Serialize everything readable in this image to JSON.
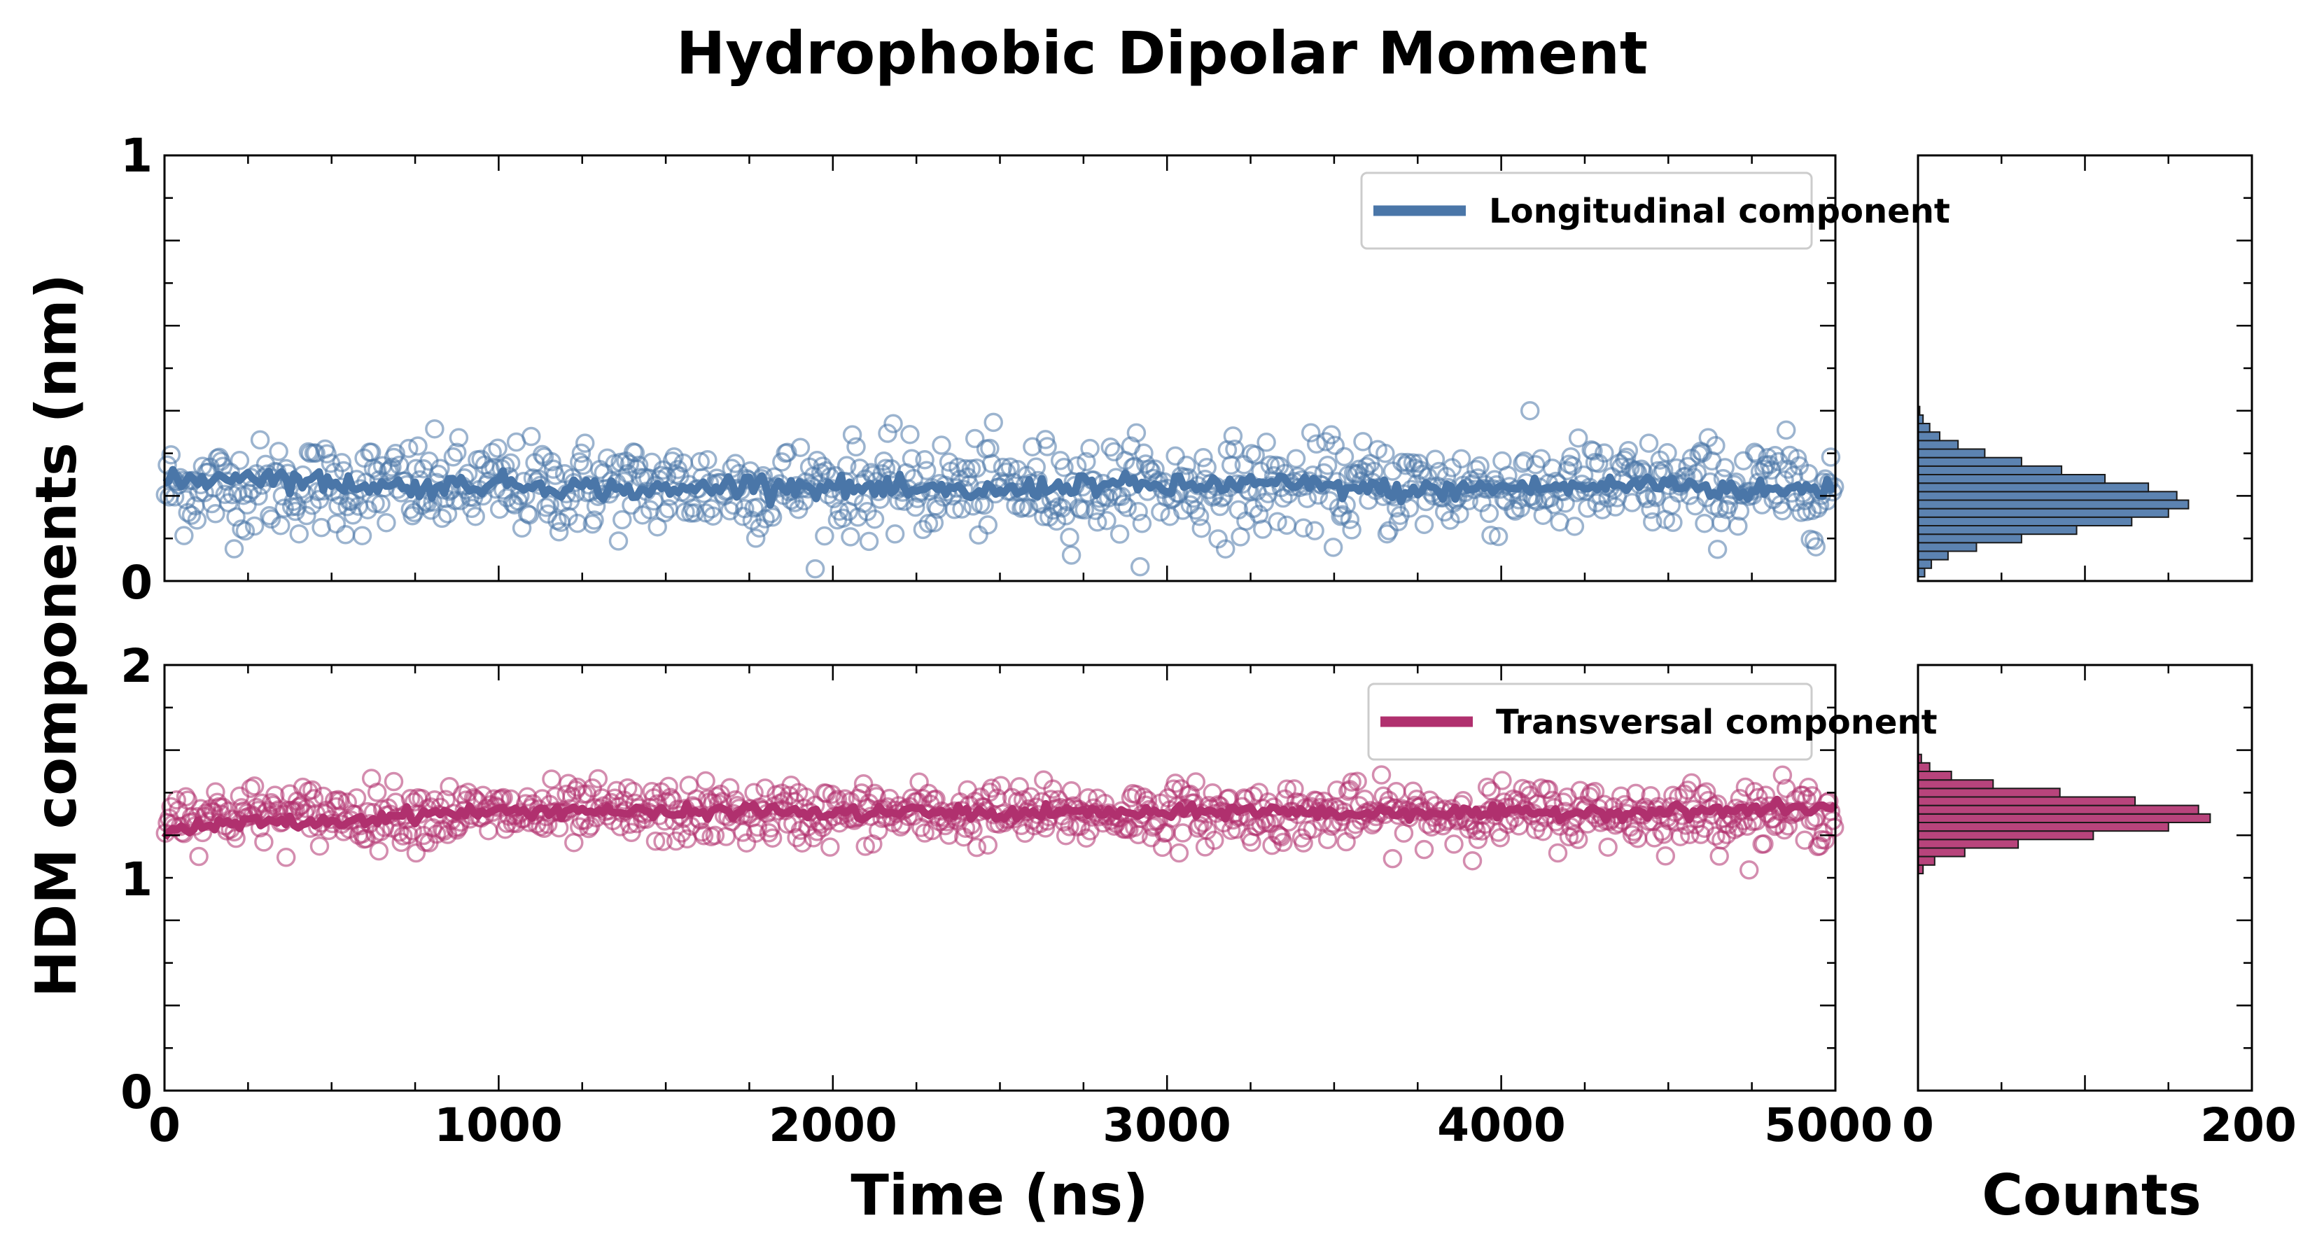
{
  "chart_data": {
    "type": "scatter",
    "title": "Hydrophobic Dipolar Moment",
    "ylabel": "HDM components (nm)",
    "xlabel": "Time (ns)",
    "hist_xlabel": "Counts",
    "xlim": [
      0,
      5000
    ],
    "x_tick_labels": [
      "0",
      "1000",
      "2000",
      "3000",
      "4000",
      "5000"
    ],
    "hist_xlim": [
      0,
      200
    ],
    "hist_tick_labels": [
      "0",
      "200"
    ],
    "panels": [
      {
        "name": "longitudinal",
        "legend": "Longitudinal component",
        "color": "#4a76a8",
        "ylim": [
          0,
          1
        ],
        "y_tick_labels": [
          "0",
          "1"
        ],
        "mean_series": {
          "x": [
            0,
            250,
            500,
            750,
            1000,
            1250,
            1500,
            1750,
            2000,
            2250,
            2500,
            2750,
            3000,
            3250,
            3500,
            3750,
            4000,
            4250,
            4500,
            4750,
            5000
          ],
          "y": [
            0.23,
            0.25,
            0.23,
            0.22,
            0.23,
            0.22,
            0.21,
            0.23,
            0.22,
            0.21,
            0.21,
            0.23,
            0.22,
            0.23,
            0.22,
            0.21,
            0.22,
            0.22,
            0.23,
            0.21,
            0.22
          ]
        },
        "scatter_mean": 0.22,
        "scatter_spread": 0.055,
        "scatter_count": 900,
        "hist": {
          "bin_centers": [
            0.02,
            0.04,
            0.06,
            0.08,
            0.1,
            0.12,
            0.14,
            0.16,
            0.18,
            0.2,
            0.22,
            0.24,
            0.26,
            0.28,
            0.3,
            0.32,
            0.34,
            0.36,
            0.38,
            0.4
          ],
          "counts": [
            4,
            8,
            18,
            35,
            62,
            95,
            128,
            150,
            162,
            155,
            138,
            112,
            86,
            62,
            40,
            24,
            13,
            7,
            3,
            1
          ]
        }
      },
      {
        "name": "transversal",
        "legend": "Transversal component",
        "color": "#b0306e",
        "ylim": [
          0,
          2
        ],
        "y_tick_labels": [
          "0",
          "1",
          "2"
        ],
        "mean_series": {
          "x": [
            0,
            250,
            500,
            750,
            1000,
            1250,
            1500,
            1750,
            2000,
            2250,
            2500,
            2750,
            3000,
            3250,
            3500,
            3750,
            4000,
            4250,
            4500,
            4750,
            5000
          ],
          "y": [
            1.22,
            1.26,
            1.26,
            1.3,
            1.31,
            1.32,
            1.3,
            1.32,
            1.3,
            1.31,
            1.3,
            1.31,
            1.3,
            1.32,
            1.3,
            1.31,
            1.3,
            1.31,
            1.31,
            1.32,
            1.33
          ]
        },
        "scatter_mean": 1.3,
        "scatter_spread": 0.07,
        "scatter_count": 900,
        "hist": {
          "bin_centers": [
            1.04,
            1.08,
            1.12,
            1.16,
            1.2,
            1.24,
            1.28,
            1.32,
            1.36,
            1.4,
            1.44,
            1.48,
            1.52,
            1.56
          ],
          "counts": [
            3,
            10,
            28,
            60,
            105,
            150,
            175,
            168,
            130,
            85,
            45,
            20,
            7,
            2
          ]
        }
      }
    ]
  }
}
